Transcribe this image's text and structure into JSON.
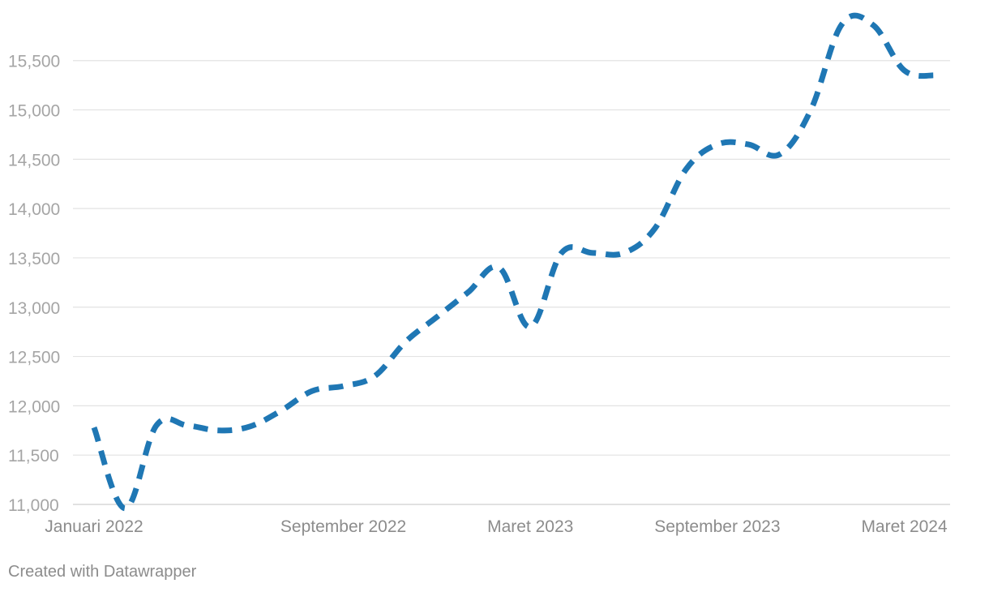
{
  "chart_data": {
    "type": "line",
    "x_labels": [
      "Januari 2022",
      "September 2022",
      "Maret 2023",
      "September 2023",
      "Maret 2024"
    ],
    "x_label_month_index": [
      0,
      8,
      14,
      20,
      26
    ],
    "y_ticks": [
      11000,
      11500,
      12000,
      12500,
      13000,
      13500,
      14000,
      14500,
      15000,
      15500
    ],
    "ylim": [
      11000,
      15950
    ],
    "grid": true,
    "line_style": "dashed",
    "series": [
      {
        "color": "#1f77b4",
        "values": [
          11780,
          10960,
          11800,
          11800,
          11750,
          11790,
          11950,
          12150,
          12200,
          12300,
          12650,
          12900,
          13150,
          13400,
          12800,
          13550,
          13550,
          13550,
          13800,
          14400,
          14650,
          14650,
          14550,
          15000,
          15870,
          15860,
          15400,
          15350
        ]
      }
    ],
    "title": "",
    "xlabel": "",
    "ylabel": ""
  },
  "footer": {
    "credit": "Created with Datawrapper"
  }
}
